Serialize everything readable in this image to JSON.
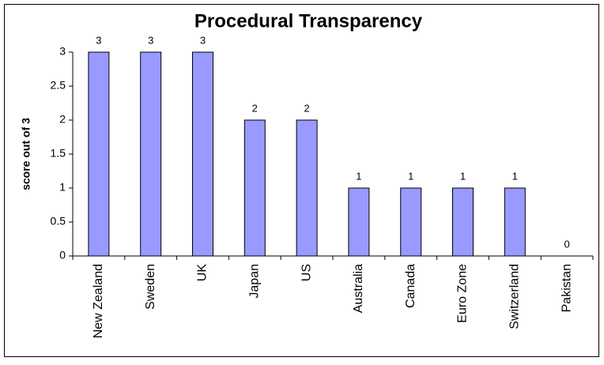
{
  "chart_data": {
    "type": "bar",
    "title": "Procedural Transparency",
    "y_label": "score out of 3",
    "categories": [
      "New Zealand",
      "Sweden",
      "UK",
      "Japan",
      "US",
      "Australia",
      "Canada",
      "Euro Zone",
      "Switzerland",
      "Pakistan"
    ],
    "values": [
      3,
      3,
      3,
      2,
      2,
      1,
      1,
      1,
      1,
      0
    ],
    "color": "#9999ff",
    "ylim": [
      0,
      3
    ],
    "yticks": [
      0,
      0.5,
      1,
      1.5,
      2,
      2.5,
      3
    ],
    "grid": false
  }
}
